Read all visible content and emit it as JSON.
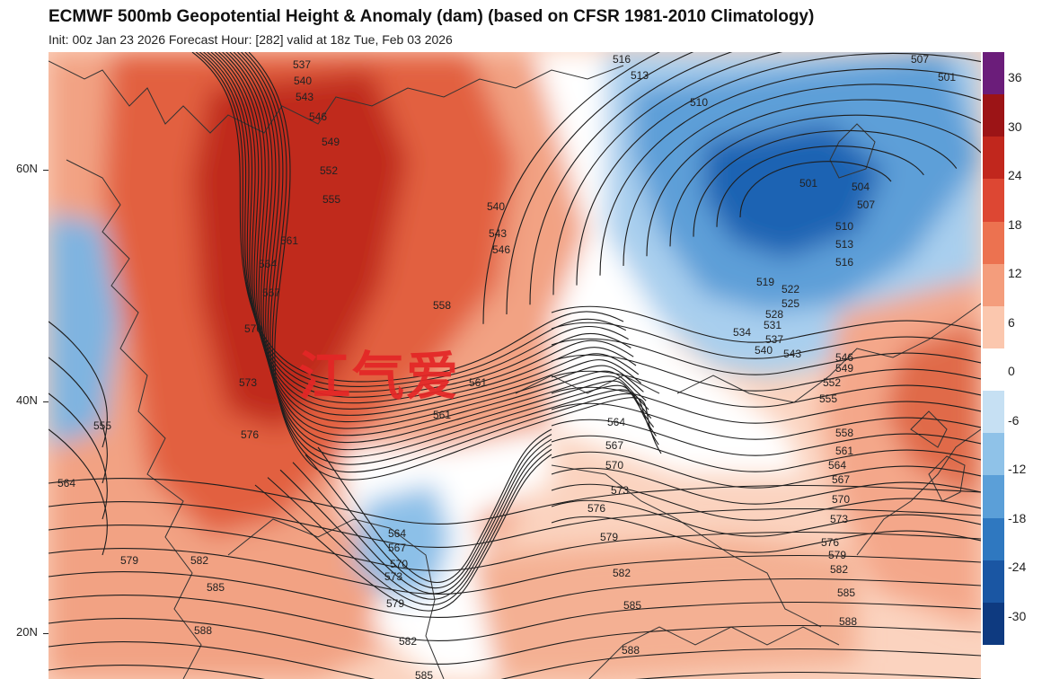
{
  "header": {
    "title": "ECMWF 500mb Geopotential Height & Anomaly (dam) (based on CFSR 1981-2010 Climatology)",
    "subtitle": "Init: 00z Jan 23 2026   Forecast Hour: [282]   valid at 18z Tue, Feb 03 2026"
  },
  "map": {
    "latitude_labels": [
      "60N",
      "40N",
      "20N"
    ],
    "watermark": "江气爱",
    "colors": {
      "pos_strong": "#b8201a",
      "pos_mid": "#e0583a",
      "pos_weak": "#f4a68a",
      "pos_faint": "#fad6c3",
      "neutral": "#ffffff",
      "neg_faint": "#bcdaf0",
      "neg_weak": "#7eb8e4",
      "neg_mid": "#3e87cc",
      "neg_strong": "#1d5fb0",
      "contour": "#222222",
      "coast": "#333333"
    },
    "contour_labels": [
      {
        "text": "537"
      },
      {
        "text": "540"
      },
      {
        "text": "543"
      },
      {
        "text": "546"
      },
      {
        "text": "549"
      },
      {
        "text": "552"
      },
      {
        "text": "555"
      },
      {
        "text": "561"
      },
      {
        "text": "564"
      },
      {
        "text": "567"
      },
      {
        "text": "570"
      },
      {
        "text": "573"
      },
      {
        "text": "576"
      },
      {
        "text": "555"
      },
      {
        "text": "564"
      },
      {
        "text": "579"
      },
      {
        "text": "582"
      },
      {
        "text": "585"
      },
      {
        "text": "588"
      },
      {
        "text": "540"
      },
      {
        "text": "543"
      },
      {
        "text": "546"
      },
      {
        "text": "558"
      },
      {
        "text": "561"
      },
      {
        "text": "561"
      },
      {
        "text": "516"
      },
      {
        "text": "513"
      },
      {
        "text": "510"
      },
      {
        "text": "501"
      },
      {
        "text": "504"
      },
      {
        "text": "507"
      },
      {
        "text": "507"
      },
      {
        "text": "501"
      },
      {
        "text": "510"
      },
      {
        "text": "513"
      },
      {
        "text": "516"
      },
      {
        "text": "519"
      },
      {
        "text": "522"
      },
      {
        "text": "525"
      },
      {
        "text": "528"
      },
      {
        "text": "531"
      },
      {
        "text": "534"
      },
      {
        "text": "537"
      },
      {
        "text": "540"
      },
      {
        "text": "543"
      },
      {
        "text": "546"
      },
      {
        "text": "549"
      },
      {
        "text": "552"
      },
      {
        "text": "555"
      },
      {
        "text": "558"
      },
      {
        "text": "561"
      },
      {
        "text": "564"
      },
      {
        "text": "567"
      },
      {
        "text": "570"
      },
      {
        "text": "573"
      },
      {
        "text": "576"
      },
      {
        "text": "579"
      },
      {
        "text": "582"
      },
      {
        "text": "585"
      },
      {
        "text": "588"
      },
      {
        "text": "564"
      },
      {
        "text": "567"
      },
      {
        "text": "570"
      },
      {
        "text": "573"
      },
      {
        "text": "576"
      },
      {
        "text": "579"
      },
      {
        "text": "582"
      },
      {
        "text": "585"
      },
      {
        "text": "588"
      },
      {
        "text": "564"
      },
      {
        "text": "567"
      },
      {
        "text": "570"
      },
      {
        "text": "573"
      },
      {
        "text": "579"
      },
      {
        "text": "582"
      },
      {
        "text": "585"
      }
    ]
  },
  "colorbar": {
    "labels": [
      "36",
      "30",
      "24",
      "18",
      "12",
      "6",
      "0",
      "-6",
      "-12",
      "-18",
      "-24",
      "-30"
    ],
    "colors": [
      "#6b1d7a",
      "#9c1416",
      "#c1271d",
      "#dd4733",
      "#ec7250",
      "#f49d7c",
      "#fbc7ae",
      "#ffffff",
      "#c6e0f3",
      "#8fc2e8",
      "#5b9fd8",
      "#2f78c0",
      "#1a56a3",
      "#0e3a80"
    ]
  }
}
